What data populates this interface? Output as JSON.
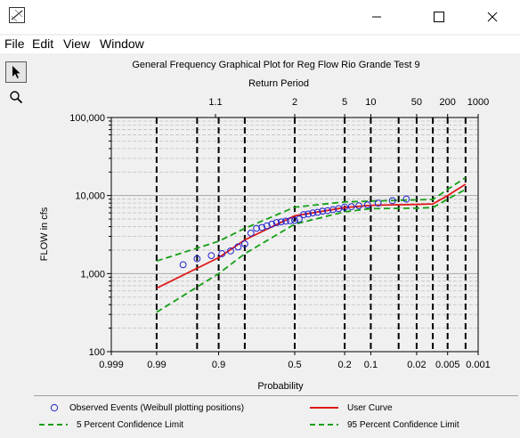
{
  "window": {
    "title": "",
    "controls": [
      "minimize",
      "maximize",
      "close"
    ]
  },
  "menu": {
    "file": "File",
    "edit": "Edit",
    "view": "View",
    "window": "Window"
  },
  "tools": [
    {
      "name": "pointer",
      "active": true
    },
    {
      "name": "zoom",
      "active": false
    }
  ],
  "legend": {
    "observed": "Observed Events (Weibull plotting positions)",
    "user_curve": "User Curve",
    "lower_limit": "5 Percent Confidence Limit",
    "upper_limit": "95 Percent Confidence Limit"
  },
  "colors": {
    "observed": "#2222cc",
    "user_curve": "#e01818",
    "confidence": "#16a016",
    "grid": "#c0c0c0",
    "return_line": "#000000"
  },
  "chart_data": {
    "type": "scatter",
    "title": "General Frequency Graphical Plot for Reg Flow Rio Grande Test 9",
    "top_axis_label": "Return Period",
    "top_ticks": [
      {
        "label": "1.1",
        "p": 0.9091
      },
      {
        "label": "2",
        "p": 0.5
      },
      {
        "label": "5",
        "p": 0.2
      },
      {
        "label": "10",
        "p": 0.1
      },
      {
        "label": "50",
        "p": 0.02
      },
      {
        "label": "200",
        "p": 0.005
      },
      {
        "label": "1000",
        "p": 0.001
      }
    ],
    "xlabel": "Probability",
    "ylabel": "FLOW in cfs",
    "x_scale": "normal probability (exceedance)",
    "x_range": [
      0.999,
      0.001
    ],
    "x_ticks": [
      {
        "label": "0.999",
        "p": 0.999
      },
      {
        "label": "0.99",
        "p": 0.99
      },
      {
        "label": "0.9",
        "p": 0.9
      },
      {
        "label": "0.5",
        "p": 0.5
      },
      {
        "label": "0.2",
        "p": 0.2
      },
      {
        "label": "0.1",
        "p": 0.1
      },
      {
        "label": "0.02",
        "p": 0.02
      },
      {
        "label": "0.005",
        "p": 0.005
      },
      {
        "label": "0.001",
        "p": 0.001
      }
    ],
    "y_scale": "log",
    "y_range": [
      100,
      100000
    ],
    "y_ticks": [
      {
        "label": "100",
        "v": 100
      },
      {
        "label": "1,000",
        "v": 1000
      },
      {
        "label": "10,000",
        "v": 10000
      },
      {
        "label": "100,000",
        "v": 100000
      }
    ],
    "vertical_lines_p": [
      0.99,
      0.95,
      0.9,
      0.8,
      0.5,
      0.2,
      0.1,
      0.04,
      0.02,
      0.01,
      0.005,
      0.002
    ],
    "grid": true,
    "series": [
      {
        "name": "Observed Events (Weibull plotting positions)",
        "kind": "points",
        "points": [
          [
            0.97,
            1300
          ],
          [
            0.95,
            1550
          ],
          [
            0.92,
            1700
          ],
          [
            0.89,
            1800
          ],
          [
            0.86,
            1950
          ],
          [
            0.83,
            2200
          ],
          [
            0.8,
            2400
          ],
          [
            0.77,
            3300
          ],
          [
            0.74,
            3800
          ],
          [
            0.71,
            3900
          ],
          [
            0.68,
            4100
          ],
          [
            0.65,
            4300
          ],
          [
            0.62,
            4500
          ],
          [
            0.59,
            4600
          ],
          [
            0.56,
            4700
          ],
          [
            0.53,
            4750
          ],
          [
            0.5,
            4800
          ],
          [
            0.47,
            5000
          ],
          [
            0.44,
            5700
          ],
          [
            0.41,
            5800
          ],
          [
            0.38,
            6000
          ],
          [
            0.35,
            6100
          ],
          [
            0.32,
            6300
          ],
          [
            0.29,
            6400
          ],
          [
            0.26,
            6600
          ],
          [
            0.23,
            6800
          ],
          [
            0.2,
            7100
          ],
          [
            0.17,
            7200
          ],
          [
            0.14,
            7400
          ],
          [
            0.11,
            7600
          ],
          [
            0.08,
            8000
          ],
          [
            0.05,
            8600
          ],
          [
            0.03,
            9000
          ]
        ]
      },
      {
        "name": "User Curve",
        "kind": "line",
        "points": [
          [
            0.99,
            650
          ],
          [
            0.9,
            1600
          ],
          [
            0.8,
            2700
          ],
          [
            0.5,
            5500
          ],
          [
            0.2,
            7000
          ],
          [
            0.1,
            7500
          ],
          [
            0.02,
            7700
          ],
          [
            0.01,
            7800
          ],
          [
            0.005,
            10000
          ],
          [
            0.002,
            14000
          ]
        ]
      },
      {
        "name": "5 Percent Confidence Limit",
        "kind": "line",
        "points": [
          [
            0.99,
            320
          ],
          [
            0.9,
            1000
          ],
          [
            0.8,
            1800
          ],
          [
            0.5,
            4300
          ],
          [
            0.2,
            6200
          ],
          [
            0.1,
            6800
          ],
          [
            0.02,
            6900
          ],
          [
            0.01,
            7000
          ],
          [
            0.005,
            9000
          ],
          [
            0.002,
            12000
          ]
        ]
      },
      {
        "name": "95 Percent Confidence Limit",
        "kind": "line",
        "points": [
          [
            0.99,
            1450
          ],
          [
            0.9,
            2600
          ],
          [
            0.8,
            3800
          ],
          [
            0.5,
            7100
          ],
          [
            0.2,
            8300
          ],
          [
            0.1,
            8500
          ],
          [
            0.02,
            8800
          ],
          [
            0.01,
            8900
          ],
          [
            0.005,
            12000
          ],
          [
            0.002,
            17000
          ]
        ]
      }
    ]
  }
}
